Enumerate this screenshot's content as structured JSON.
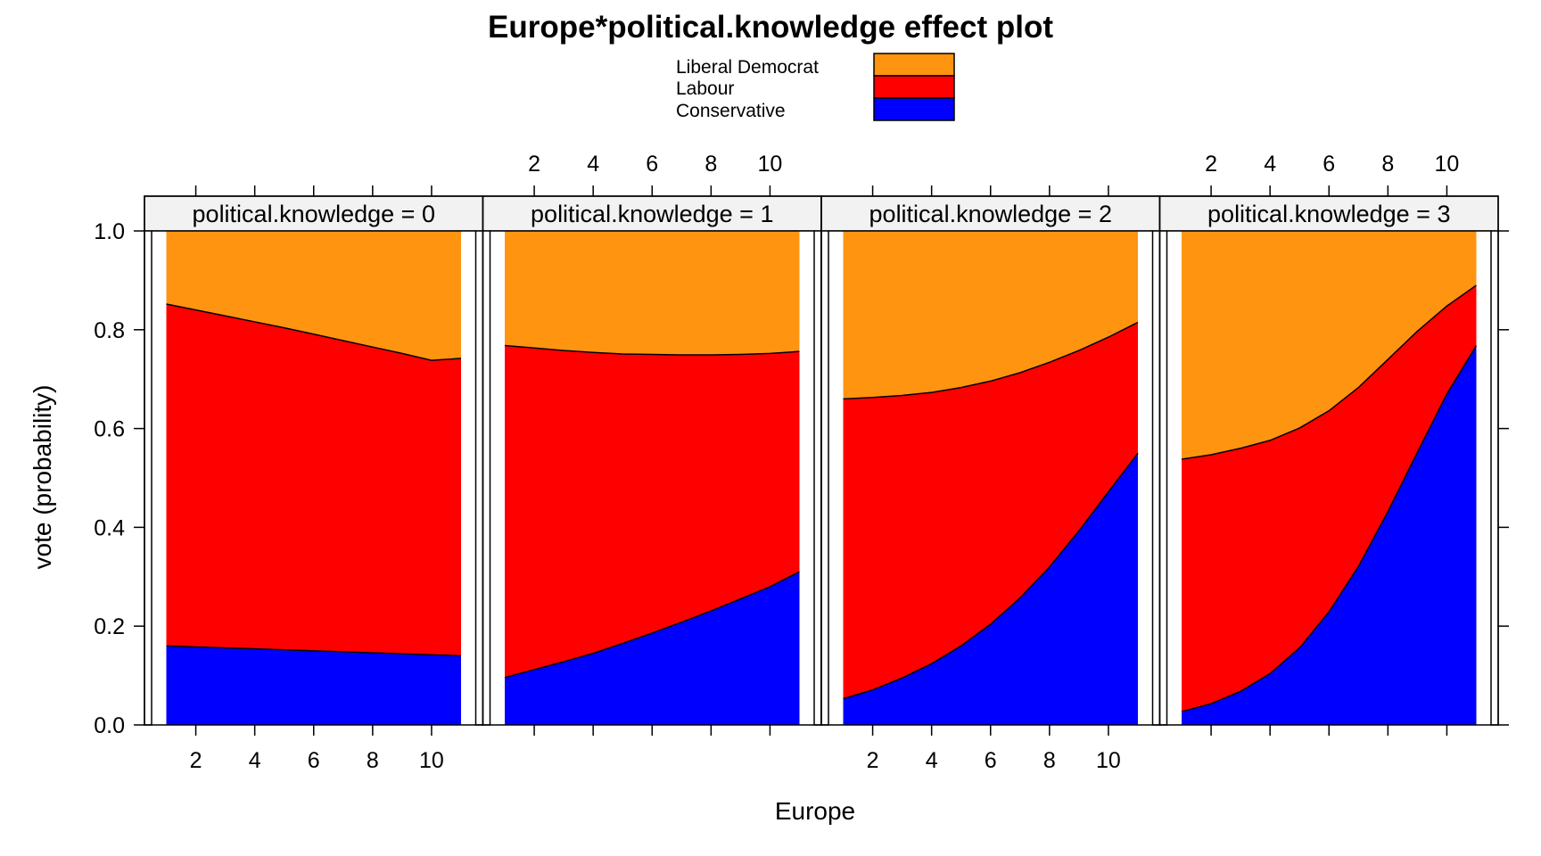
{
  "chart_data": {
    "type": "area",
    "title": "Europe*political.knowledge effect plot",
    "xlabel": "Europe",
    "ylabel": "vote (probability)",
    "xlim": [
      0.5,
      11.5
    ],
    "ylim": [
      0,
      1
    ],
    "x_ticks": [
      2,
      4,
      6,
      8,
      10
    ],
    "y_ticks": [
      "0.0",
      "0.2",
      "0.4",
      "0.6",
      "0.8",
      "1.0"
    ],
    "stacked": true,
    "legend": {
      "position": "top",
      "entries": [
        {
          "name": "Liberal Democrat",
          "color": "#ff9411"
        },
        {
          "name": "Labour",
          "color": "#ff0000"
        },
        {
          "name": "Conservative",
          "color": "#0000ff"
        }
      ]
    },
    "x": [
      1,
      2,
      3,
      4,
      5,
      6,
      7,
      8,
      9,
      10,
      11
    ],
    "panels": [
      {
        "strip": "political.knowledge = 0",
        "series": [
          {
            "name": "Conservative",
            "cumulative": [
              0.16,
              0.158,
              0.156,
              0.154,
              0.152,
              0.15,
              0.148,
              0.146,
              0.144,
              0.142,
              0.14
            ]
          },
          {
            "name": "Labour",
            "cumulative": [
              0.852,
              0.84,
              0.828,
              0.816,
              0.804,
              0.791,
              0.778,
              0.765,
              0.752,
              0.738,
              0.742
            ]
          },
          {
            "name": "Liberal Democrat",
            "cumulative": [
              1,
              1,
              1,
              1,
              1,
              1,
              1,
              1,
              1,
              1,
              1
            ]
          }
        ]
      },
      {
        "strip": "political.knowledge = 1",
        "series": [
          {
            "name": "Conservative",
            "cumulative": [
              0.096,
              0.112,
              0.128,
              0.145,
              0.165,
              0.186,
              0.208,
              0.231,
              0.255,
              0.28,
              0.31
            ]
          },
          {
            "name": "Labour",
            "cumulative": [
              0.768,
              0.763,
              0.758,
              0.754,
              0.751,
              0.75,
              0.749,
              0.749,
              0.75,
              0.752,
              0.756
            ]
          },
          {
            "name": "Liberal Democrat",
            "cumulative": [
              1,
              1,
              1,
              1,
              1,
              1,
              1,
              1,
              1,
              1,
              1
            ]
          }
        ]
      },
      {
        "strip": "political.knowledge = 2",
        "series": [
          {
            "name": "Conservative",
            "cumulative": [
              0.053,
              0.071,
              0.095,
              0.124,
              0.16,
              0.204,
              0.257,
              0.32,
              0.393,
              0.472,
              0.55
            ]
          },
          {
            "name": "Labour",
            "cumulative": [
              0.66,
              0.663,
              0.667,
              0.673,
              0.683,
              0.696,
              0.713,
              0.734,
              0.758,
              0.785,
              0.815
            ]
          },
          {
            "name": "Liberal Democrat",
            "cumulative": [
              1,
              1,
              1,
              1,
              1,
              1,
              1,
              1,
              1,
              1,
              1
            ]
          }
        ]
      },
      {
        "strip": "political.knowledge = 3",
        "series": [
          {
            "name": "Conservative",
            "cumulative": [
              0.027,
              0.043,
              0.068,
              0.104,
              0.156,
              0.229,
              0.321,
              0.432,
              0.552,
              0.67,
              0.768
            ]
          },
          {
            "name": "Labour",
            "cumulative": [
              0.538,
              0.547,
              0.56,
              0.576,
              0.601,
              0.636,
              0.683,
              0.74,
              0.797,
              0.848,
              0.89
            ]
          },
          {
            "name": "Liberal Democrat",
            "cumulative": [
              1,
              1,
              1,
              1,
              1,
              1,
              1,
              1,
              1,
              1,
              1
            ]
          }
        ]
      }
    ]
  }
}
